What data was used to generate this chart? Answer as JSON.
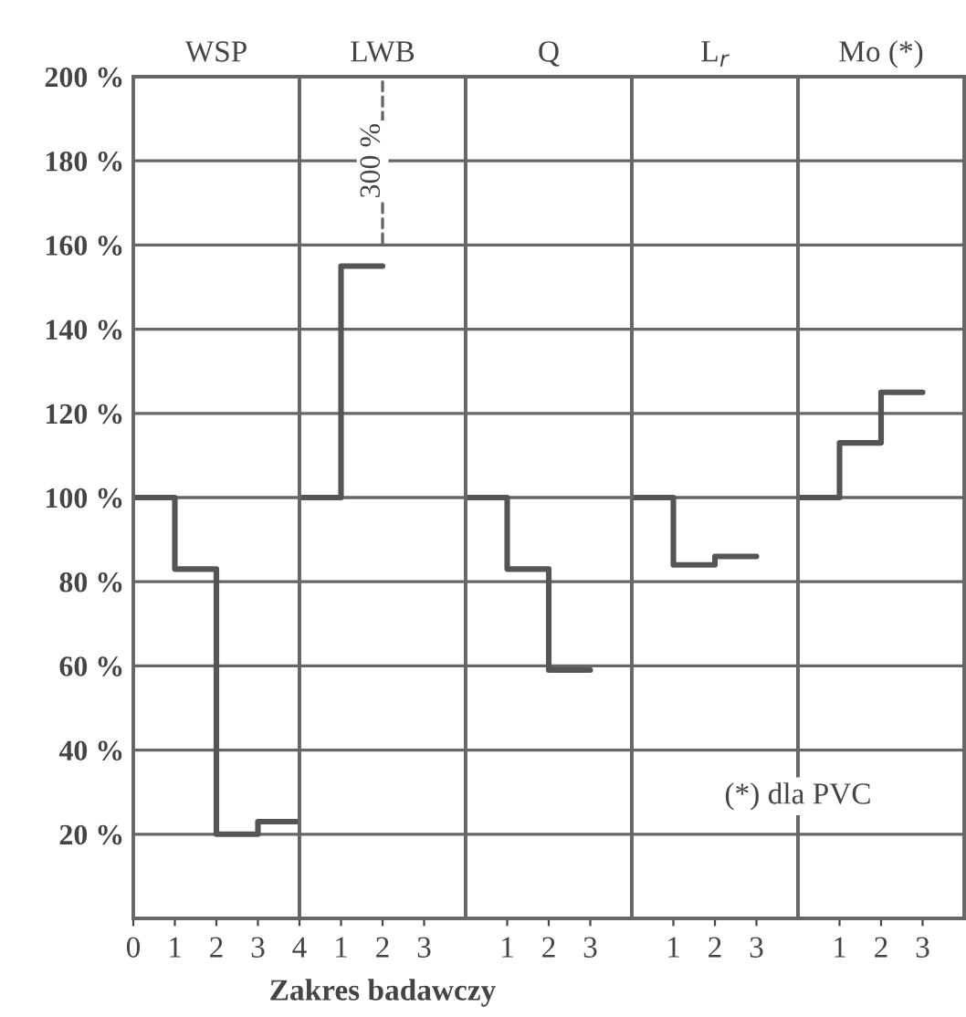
{
  "chart_data": [
    {
      "type": "step",
      "title": "WSP",
      "x": [
        0,
        1,
        2,
        3,
        4
      ],
      "values": [
        100,
        83,
        20,
        23,
        23
      ],
      "color": "#555555",
      "xlim": [
        0,
        4
      ],
      "xticks": [
        0,
        1,
        2,
        3,
        4
      ],
      "ylim": [
        0,
        200
      ],
      "yticks": [
        {
          "value": 20,
          "label": "20 %"
        },
        {
          "value": 40,
          "label": "40 %"
        },
        {
          "value": 60,
          "label": "60 %"
        },
        {
          "value": 80,
          "label": "80 %"
        },
        {
          "value": 100,
          "label": "100 %"
        },
        {
          "value": 120,
          "label": "120 %"
        },
        {
          "value": 140,
          "label": "140 %"
        },
        {
          "value": 160,
          "label": "160 %"
        },
        {
          "value": 180,
          "label": "180 %"
        },
        {
          "value": 200,
          "label": "200 %"
        }
      ],
      "grid": "y"
    },
    {
      "type": "step",
      "title": "LWB",
      "xlabel": "Zakres badawczy",
      "x": [
        0,
        1,
        2
      ],
      "values": [
        100,
        155,
        155
      ],
      "color": "#555555",
      "xlim": [
        0,
        4
      ],
      "xticks": [
        1,
        2,
        3
      ],
      "ylim": [
        0,
        200
      ],
      "yticks": [
        20,
        40,
        60,
        80,
        100,
        120,
        140,
        160,
        180,
        200
      ],
      "grid": "y",
      "tick_labels": "x",
      "annotations": [
        "300 %"
      ]
    },
    {
      "type": "step",
      "title": "Q",
      "x": [
        0,
        1,
        2,
        3
      ],
      "values": [
        100,
        83,
        59,
        59
      ],
      "color": "#555555",
      "xlim": [
        0,
        4
      ],
      "xticks": [
        1,
        2,
        3
      ],
      "ylim": [
        0,
        200
      ],
      "yticks": [
        20,
        40,
        60,
        80,
        100,
        120,
        140,
        160,
        180,
        200
      ],
      "grid": "y",
      "tick_labels": "x"
    },
    {
      "type": "step",
      "title": "L$_{r}$",
      "x": [
        0,
        1,
        2,
        3
      ],
      "values": [
        100,
        84,
        86,
        86
      ],
      "color": "#555555",
      "xlim": [
        0,
        4
      ],
      "xticks": [
        1,
        2,
        3
      ],
      "ylim": [
        0,
        200
      ],
      "yticks": [
        20,
        40,
        60,
        80,
        100,
        120,
        140,
        160,
        180,
        200
      ],
      "grid": "y",
      "tick_labels": "x",
      "annotations": [
        "(*) dla PVC"
      ]
    },
    {
      "type": "step",
      "title": "Mo (*)",
      "x": [
        0,
        1,
        2,
        3
      ],
      "values": [
        100,
        113,
        125,
        125
      ],
      "color": "#555555",
      "xlim": [
        0,
        4
      ],
      "xticks": [
        1,
        2,
        3
      ],
      "ylim": [
        0,
        200
      ],
      "yticks": [
        20,
        40,
        60,
        80,
        100,
        120,
        140,
        160,
        180,
        200
      ],
      "grid": "y",
      "tick_labels": "x"
    }
  ]
}
